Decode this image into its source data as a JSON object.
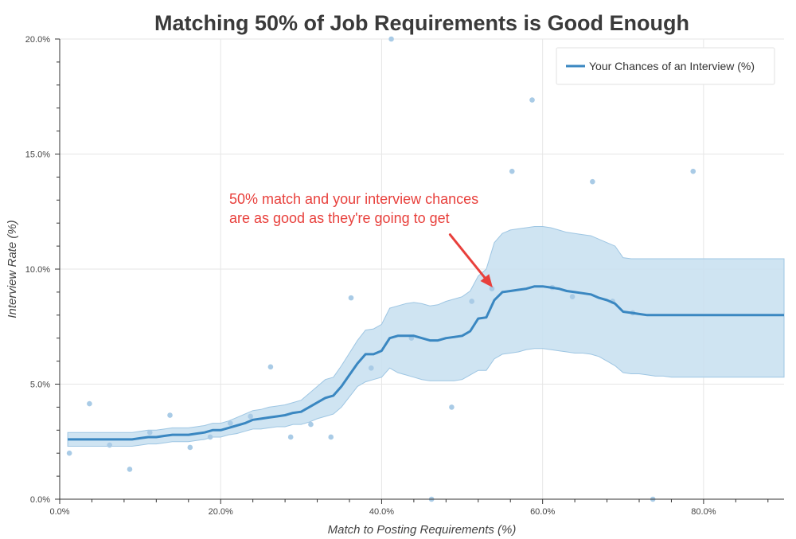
{
  "colors": {
    "line": "#3a87c1",
    "band": "#c7dff0",
    "band_edge": "#9ec6e3",
    "scatter": "#a9cbe6",
    "annotation": "#e8403c",
    "grid": "#e6e6e6",
    "axis": "#333333"
  },
  "chart_data": {
    "type": "line",
    "title": "Matching 50% of Job Requirements is Good Enough",
    "xlabel": "Match to Posting Requirements (%)",
    "ylabel": "Interview Rate (%)",
    "xlim": [
      0,
      90
    ],
    "ylim": [
      0,
      20
    ],
    "x_ticks": [
      0,
      20,
      40,
      60,
      80
    ],
    "x_tick_labels": [
      "0.0%",
      "20.0%",
      "40.0%",
      "60.0%",
      "80.0%"
    ],
    "y_ticks": [
      0,
      5,
      10,
      15,
      20
    ],
    "y_tick_labels": [
      "0.0%",
      "5.0%",
      "10.0%",
      "15.0%",
      "20.0%"
    ],
    "grid": true,
    "legend_position": "top-right",
    "series": [
      {
        "name": "Your Chances of an Interview (%)",
        "x": [
          1,
          2,
          3,
          4,
          5,
          6,
          7,
          8,
          9,
          10,
          11,
          12,
          13,
          14,
          15,
          16,
          17,
          18,
          19,
          20,
          21,
          22,
          23,
          24,
          25,
          26,
          27,
          28,
          29,
          30,
          31,
          32,
          33,
          34,
          35,
          36,
          37,
          38,
          39,
          40,
          41,
          42,
          43,
          44,
          45,
          46,
          47,
          48,
          49,
          50,
          51,
          52,
          53,
          54,
          55,
          56,
          57,
          58,
          59,
          60,
          61,
          62,
          63,
          64,
          65,
          66,
          67,
          68,
          69,
          70,
          71,
          72,
          73,
          74,
          75,
          76,
          77,
          78,
          79,
          80,
          81,
          82,
          83,
          84,
          85,
          86,
          87,
          88,
          89,
          90
        ],
        "y": [
          2.6,
          2.6,
          2.6,
          2.6,
          2.6,
          2.6,
          2.6,
          2.6,
          2.6,
          2.65,
          2.7,
          2.7,
          2.75,
          2.8,
          2.8,
          2.8,
          2.85,
          2.9,
          3.0,
          3.0,
          3.1,
          3.2,
          3.3,
          3.45,
          3.5,
          3.55,
          3.6,
          3.65,
          3.75,
          3.8,
          4.0,
          4.2,
          4.4,
          4.5,
          4.9,
          5.4,
          5.9,
          6.3,
          6.3,
          6.45,
          7.0,
          7.1,
          7.1,
          7.1,
          7.0,
          6.9,
          6.9,
          7.0,
          7.05,
          7.1,
          7.3,
          7.85,
          7.9,
          8.65,
          9.0,
          9.05,
          9.1,
          9.15,
          9.25,
          9.25,
          9.2,
          9.15,
          9.05,
          9.0,
          8.95,
          8.9,
          8.75,
          8.65,
          8.5,
          8.15,
          8.1,
          8.05,
          8.0,
          8.0,
          8.0,
          8.0,
          8.0,
          8.0,
          8.0,
          8.0,
          8.0,
          8.0,
          8.0,
          8.0,
          8.0,
          8.0,
          8.0,
          8.0,
          8.0,
          8.0
        ],
        "lower": [
          2.3,
          2.3,
          2.3,
          2.3,
          2.3,
          2.3,
          2.3,
          2.3,
          2.3,
          2.35,
          2.4,
          2.4,
          2.45,
          2.5,
          2.5,
          2.5,
          2.55,
          2.6,
          2.7,
          2.7,
          2.8,
          2.85,
          2.95,
          3.05,
          3.05,
          3.1,
          3.15,
          3.15,
          3.25,
          3.25,
          3.35,
          3.5,
          3.6,
          3.7,
          4.0,
          4.45,
          4.9,
          5.1,
          5.2,
          5.3,
          5.7,
          5.5,
          5.4,
          5.3,
          5.2,
          5.15,
          5.15,
          5.15,
          5.15,
          5.2,
          5.4,
          5.6,
          5.6,
          6.1,
          6.3,
          6.35,
          6.4,
          6.5,
          6.55,
          6.55,
          6.5,
          6.45,
          6.4,
          6.35,
          6.35,
          6.3,
          6.2,
          6.0,
          5.8,
          5.5,
          5.45,
          5.45,
          5.4,
          5.35,
          5.35,
          5.3,
          5.3,
          5.3,
          5.3,
          5.3,
          5.3,
          5.3,
          5.3,
          5.3,
          5.3,
          5.3,
          5.3,
          5.3,
          5.3,
          5.3
        ],
        "upper": [
          2.9,
          2.9,
          2.9,
          2.9,
          2.9,
          2.9,
          2.9,
          2.9,
          2.9,
          2.95,
          3.0,
          3.0,
          3.05,
          3.1,
          3.1,
          3.1,
          3.15,
          3.2,
          3.3,
          3.3,
          3.4,
          3.55,
          3.7,
          3.85,
          3.9,
          4.0,
          4.05,
          4.1,
          4.2,
          4.3,
          4.6,
          4.9,
          5.2,
          5.3,
          5.8,
          6.35,
          6.9,
          7.35,
          7.4,
          7.6,
          8.3,
          8.4,
          8.5,
          8.55,
          8.5,
          8.4,
          8.45,
          8.6,
          8.7,
          8.8,
          9.05,
          9.7,
          10.0,
          11.15,
          11.55,
          11.7,
          11.75,
          11.8,
          11.85,
          11.85,
          11.8,
          11.7,
          11.6,
          11.55,
          11.5,
          11.45,
          11.3,
          11.15,
          11.0,
          10.5,
          10.45,
          10.45,
          10.45,
          10.45,
          10.45,
          10.45,
          10.45,
          10.45,
          10.45,
          10.45,
          10.45,
          10.45,
          10.45,
          10.45,
          10.45,
          10.45,
          10.45,
          10.45,
          10.45,
          10.45
        ]
      }
    ],
    "scatter_points": [
      {
        "x": 1.2,
        "y": 2.0
      },
      {
        "x": 3.7,
        "y": 4.15
      },
      {
        "x": 6.2,
        "y": 2.35
      },
      {
        "x": 8.7,
        "y": 1.3
      },
      {
        "x": 11.2,
        "y": 2.9
      },
      {
        "x": 13.7,
        "y": 3.65
      },
      {
        "x": 16.2,
        "y": 2.25
      },
      {
        "x": 18.7,
        "y": 2.7
      },
      {
        "x": 21.2,
        "y": 3.3
      },
      {
        "x": 23.7,
        "y": 3.6
      },
      {
        "x": 26.2,
        "y": 5.75
      },
      {
        "x": 28.7,
        "y": 2.7
      },
      {
        "x": 31.2,
        "y": 3.25
      },
      {
        "x": 33.7,
        "y": 2.7
      },
      {
        "x": 36.2,
        "y": 8.75
      },
      {
        "x": 38.7,
        "y": 5.7
      },
      {
        "x": 41.2,
        "y": 20.0
      },
      {
        "x": 43.7,
        "y": 7.0
      },
      {
        "x": 46.2,
        "y": 0.0
      },
      {
        "x": 48.7,
        "y": 4.0
      },
      {
        "x": 51.2,
        "y": 8.6
      },
      {
        "x": 53.7,
        "y": 9.15
      },
      {
        "x": 56.2,
        "y": 14.25
      },
      {
        "x": 58.7,
        "y": 17.35
      },
      {
        "x": 61.2,
        "y": 9.2
      },
      {
        "x": 63.7,
        "y": 8.8
      },
      {
        "x": 66.2,
        "y": 13.8
      },
      {
        "x": 68.7,
        "y": 8.6
      },
      {
        "x": 71.2,
        "y": 8.1
      },
      {
        "x": 73.7,
        "y": 0.0
      },
      {
        "x": 78.7,
        "y": 14.25
      }
    ],
    "annotation": {
      "lines": [
        "50% match and your interview chances",
        "are as good as they're going to get"
      ],
      "arrow_from": {
        "x": 48.5,
        "y": 11.5
      },
      "arrow_to": {
        "x": 53.8,
        "y": 9.2
      }
    }
  }
}
